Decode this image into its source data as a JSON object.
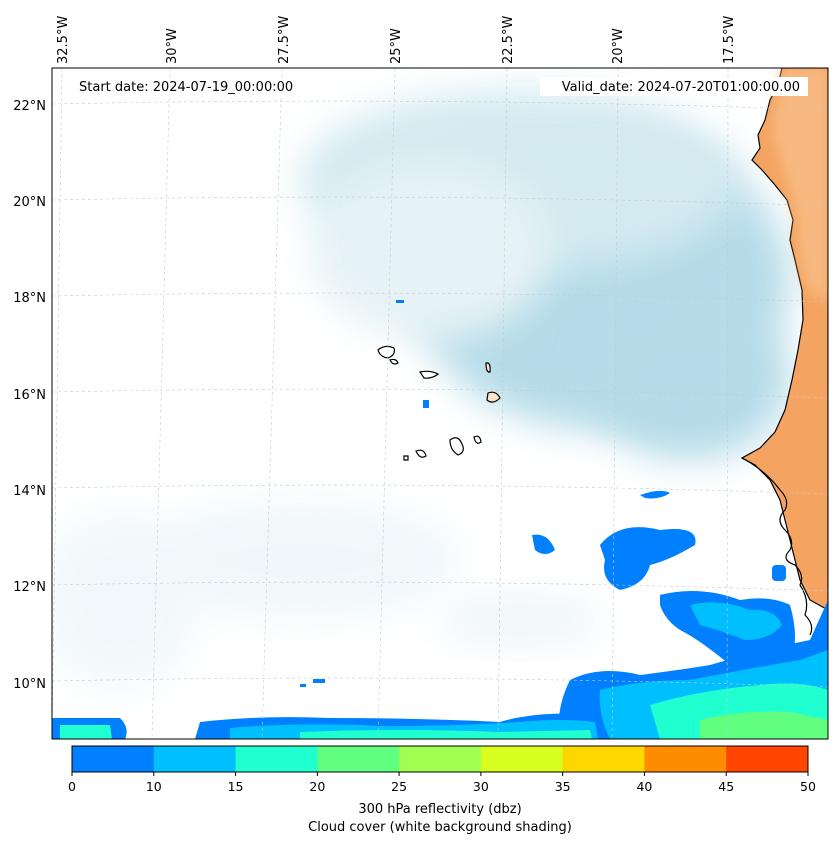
{
  "map": {
    "start_label": "Start date: 2024-07-19_00:00:00",
    "valid_label": "Valid_date: 2024-07-20T01:00:00.00",
    "lon_labels": [
      "32.5°W",
      "30°W",
      "27.5°W",
      "25°W",
      "22.5°W",
      "20°W",
      "17.5°W"
    ],
    "lat_labels": [
      "22°N",
      "20°N",
      "18°N",
      "16°N",
      "14°N",
      "12°N",
      "10°N"
    ],
    "land_color": "#f4a460",
    "cloud_color": "#add8e6"
  },
  "colorbar": {
    "ticks": [
      "0",
      "10",
      "15",
      "20",
      "25",
      "30",
      "35",
      "40",
      "45",
      "50"
    ],
    "colors": [
      "#0080ff",
      "#00bfff",
      "#20ffd0",
      "#60ff80",
      "#a0ff50",
      "#d8ff20",
      "#ffd700",
      "#ff8c00",
      "#ff4500"
    ],
    "label_line1": "300 hPa reflectivity (dbz)",
    "label_line2": "Cloud cover (white background shading)"
  }
}
